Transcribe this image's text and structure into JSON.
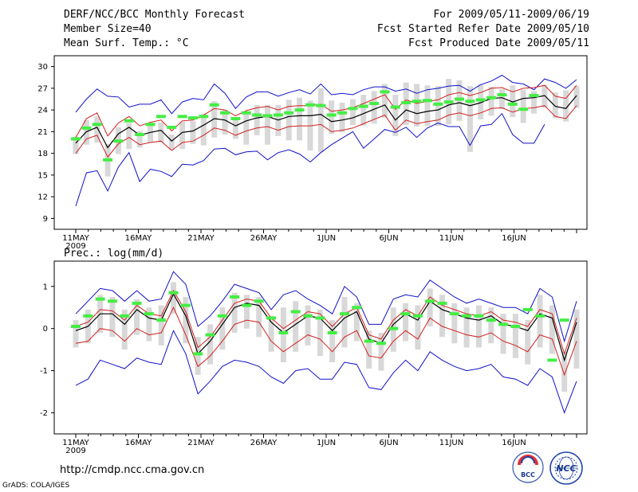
{
  "header": {
    "title": "DERF/NCC/BCC Monthly Forecast",
    "member": "Member Size=40",
    "variable": "Mean Surf. Temp.: °C",
    "period": "For 2009/05/11-2009/06/19",
    "started": "Fcst Started Refer Date 2009/05/10",
    "produced": "Fcst Produced Date 2009/05/11"
  },
  "footer": {
    "url": "http://cmdp.ncc.cma.gov.cn",
    "credit": "GrADS: COLA/IGES",
    "logo_bcc": "BCC",
    "logo_ncc": "NCC"
  },
  "colors": {
    "ensemble_mean": "#000000",
    "spread": "#d22020",
    "extreme": "#1010c8",
    "forecast_mark": "#44ee44",
    "box": "#d8d8d8"
  },
  "chart_data": [
    {
      "type": "line",
      "title": "Mean Surf. Temp.: °C",
      "xlabel": "",
      "ylabel": "°C",
      "x_ticks": [
        "11MAY",
        "16MAY",
        "21MAY",
        "26MAY",
        "1JUN",
        "6JUN",
        "11JUN",
        "16JUN"
      ],
      "x_year": "2009",
      "yticks": [
        9,
        12,
        15,
        18,
        21,
        24,
        27,
        30
      ],
      "ylim": [
        7.5,
        31.5
      ],
      "days": 40,
      "series": [
        {
          "name": "ensemble mean",
          "values": [
            19.4,
            21.0,
            21.6,
            18.8,
            20.7,
            21.6,
            20.5,
            20.9,
            21.2,
            19.7,
            20.9,
            21.1,
            21.9,
            22.8,
            22.6,
            21.8,
            22.5,
            22.9,
            23.1,
            22.6,
            23.1,
            23.2,
            23.2,
            23.4,
            22.4,
            22.6,
            22.9,
            23.5,
            24.1,
            24.7,
            22.6,
            24.0,
            23.5,
            23.8,
            24.0,
            24.7,
            25.0,
            24.6,
            25.0,
            25.6,
            25.7,
            25.1,
            25.6,
            25.7,
            26.0,
            24.5,
            24.2,
            26.0
          ]
        },
        {
          "name": "spread upper",
          "values": [
            20.2,
            22.8,
            23.6,
            20.4,
            22.2,
            23.1,
            21.8,
            22.3,
            22.6,
            21.1,
            22.5,
            22.6,
            23.3,
            24.2,
            24.0,
            23.2,
            23.9,
            24.3,
            24.5,
            24.0,
            24.5,
            24.6,
            24.6,
            24.8,
            23.8,
            24.0,
            24.3,
            24.9,
            25.5,
            26.1,
            24.1,
            25.4,
            24.9,
            25.2,
            25.4,
            26.1,
            26.4,
            26.0,
            26.4,
            27.0,
            27.1,
            26.5,
            27.0,
            27.1,
            27.4,
            25.9,
            25.6,
            27.4
          ]
        },
        {
          "name": "spread lower",
          "values": [
            18.0,
            20.0,
            20.5,
            17.5,
            19.3,
            20.2,
            19.2,
            19.5,
            19.7,
            18.4,
            19.5,
            19.7,
            20.5,
            21.5,
            21.2,
            20.5,
            21.1,
            21.5,
            21.7,
            21.2,
            21.7,
            21.8,
            21.8,
            22.0,
            21.0,
            21.2,
            21.5,
            22.1,
            22.7,
            23.3,
            21.2,
            22.6,
            22.1,
            22.4,
            22.6,
            23.3,
            23.6,
            23.2,
            23.6,
            24.2,
            24.3,
            23.7,
            24.2,
            24.3,
            24.6,
            23.1,
            22.8,
            24.6
          ]
        },
        {
          "name": "maximum",
          "values": [
            23.7,
            25.5,
            26.9,
            25.9,
            25.8,
            24.4,
            24.8,
            24.8,
            25.4,
            23.5,
            25.1,
            25.6,
            25.4,
            27.6,
            26.3,
            24.2,
            25.8,
            26.5,
            26.5,
            25.9,
            26.4,
            26.8,
            26.2,
            27.6,
            26.1,
            26.3,
            26.1,
            26.8,
            27.2,
            27.2,
            26.6,
            26.9,
            26.3,
            26.8,
            27.0,
            27.3,
            27.4,
            26.6,
            27.5,
            28.0,
            28.8,
            27.8,
            27.6,
            26.8,
            28.3,
            27.8,
            27.0,
            28.2
          ]
        },
        {
          "name": "minimum",
          "values": [
            10.7,
            15.3,
            15.6,
            12.8,
            16.1,
            18.1,
            14.1,
            15.8,
            15.5,
            14.8,
            16.5,
            16.4,
            17.0,
            18.6,
            18.7,
            17.8,
            18.2,
            18.3,
            17.1,
            18.1,
            18.5,
            17.9,
            16.8,
            18.1,
            19.2,
            20.1,
            21.0,
            18.7,
            20.0,
            21.3,
            20.9,
            21.6,
            20.2,
            21.5,
            22.2,
            21.7,
            21.7,
            19.1,
            21.8,
            22.0,
            23.5,
            20.6,
            19.4,
            19.4,
            22.0
          ]
        },
        {
          "name": "box top",
          "values": [
            20.3,
            22.6,
            23.1,
            19.3,
            21.6,
            22.2,
            21.1,
            21.9,
            22.3,
            20.6,
            22.4,
            22.5,
            23.5,
            25.2,
            24.0,
            22.8,
            23.6,
            24.7,
            24.7,
            24.7,
            25.4,
            25.7,
            25.3,
            27.0,
            25.3,
            25.0,
            25.5,
            26.1,
            26.6,
            27.6,
            26.1,
            27.8,
            27.6,
            27.4,
            27.3,
            28.3,
            28.1,
            27.3,
            27.5,
            27.2,
            26.9,
            27.4,
            26.8,
            26.6,
            27.5,
            26.4,
            26.7,
            27.3
          ]
        },
        {
          "name": "box bottom",
          "values": [
            17.9,
            19.2,
            19.5,
            14.8,
            17.9,
            18.6,
            18.8,
            19.5,
            19.5,
            18.5,
            18.6,
            19.3,
            19.1,
            20.2,
            20.6,
            20.0,
            19.2,
            20.5,
            19.2,
            20.4,
            19.8,
            19.8,
            18.4,
            18.2,
            20.7,
            20.9,
            21.9,
            21.8,
            22.1,
            22.9,
            20.4,
            21.9,
            21.7,
            21.8,
            21.8,
            22.0,
            22.5,
            18.2,
            22.7,
            23.2,
            24.1,
            23.0,
            22.2,
            23.5,
            24.3,
            22.9,
            22.4,
            24.3
          ]
        },
        {
          "name": "forecast",
          "values": [
            20.0,
            21.5,
            22.0,
            17.1,
            19.7,
            22.5,
            20.6,
            22.0,
            23.1,
            21.6,
            23.1,
            22.9,
            23.1,
            24.7,
            23.6,
            22.8,
            23.6,
            23.3,
            23.2,
            23.3,
            23.6,
            24.0,
            24.7,
            24.6,
            23.3,
            23.6,
            24.2,
            24.5,
            24.9,
            26.5,
            24.4,
            25.0,
            25.2,
            25.3,
            24.8,
            25.1,
            25.5,
            25.2,
            25.4,
            25.7,
            26.1,
            24.8,
            24.1,
            26.0
          ]
        }
      ]
    },
    {
      "type": "line",
      "title": "Prec.: log(mm/d)",
      "xlabel": "",
      "ylabel": "log(mm/d)",
      "x_ticks": [
        "11MAY",
        "16MAY",
        "21MAY",
        "26MAY",
        "1JUN",
        "6JUN",
        "11JUN",
        "16JUN"
      ],
      "x_year": "2009",
      "yticks": [
        -2,
        -1,
        0,
        1
      ],
      "ylim": [
        -2.5,
        1.6
      ],
      "days": 40,
      "series": [
        {
          "name": "ensemble mean",
          "values": [
            -0.05,
            0.05,
            0.35,
            0.35,
            0.1,
            0.45,
            0.25,
            0.2,
            0.82,
            0.3,
            -0.6,
            -0.3,
            0.1,
            0.5,
            0.6,
            0.55,
            0.15,
            -0.1,
            0.1,
            0.3,
            0.25,
            -0.05,
            0.25,
            0.4,
            -0.25,
            -0.35,
            0.1,
            0.35,
            0.2,
            0.65,
            0.45,
            0.35,
            0.25,
            0.2,
            0.3,
            0.1,
            0.05,
            -0.05,
            0.35,
            0.25,
            -0.75,
            0.15
          ]
        },
        {
          "name": "spread upper",
          "values": [
            0.05,
            0.15,
            0.45,
            0.42,
            0.2,
            0.55,
            0.35,
            0.3,
            0.9,
            0.4,
            -0.45,
            -0.2,
            0.2,
            0.6,
            0.7,
            0.65,
            0.25,
            0.0,
            0.2,
            0.4,
            0.35,
            0.05,
            0.35,
            0.5,
            -0.15,
            -0.25,
            0.2,
            0.45,
            0.3,
            0.75,
            0.55,
            0.45,
            0.35,
            0.3,
            0.4,
            0.2,
            0.15,
            0.05,
            0.45,
            0.35,
            -0.6,
            0.25
          ]
        },
        {
          "name": "spread lower",
          "values": [
            -0.35,
            -0.3,
            0.0,
            -0.05,
            -0.3,
            0.0,
            -0.15,
            -0.1,
            0.5,
            -0.15,
            -0.9,
            -0.65,
            -0.3,
            0.1,
            0.2,
            0.15,
            -0.3,
            -0.55,
            -0.35,
            -0.15,
            -0.25,
            -0.55,
            -0.2,
            -0.05,
            -0.65,
            -0.7,
            -0.3,
            -0.05,
            -0.25,
            0.25,
            0.05,
            -0.05,
            -0.15,
            -0.2,
            -0.1,
            -0.3,
            -0.4,
            -0.55,
            -0.15,
            -0.25,
            -1.1,
            -0.3
          ]
        },
        {
          "name": "maximum",
          "values": [
            0.35,
            0.65,
            0.95,
            0.9,
            0.65,
            0.9,
            0.65,
            0.7,
            1.35,
            1.05,
            0.05,
            0.3,
            0.65,
            1.05,
            0.95,
            0.85,
            0.45,
            0.8,
            0.9,
            0.7,
            0.55,
            0.35,
            1.0,
            0.75,
            0.1,
            0.1,
            0.7,
            0.8,
            0.75,
            1.15,
            0.95,
            0.75,
            0.6,
            0.7,
            0.6,
            0.5,
            0.5,
            0.35,
            0.95,
            0.75,
            -0.3,
            0.65
          ]
        },
        {
          "name": "minimum",
          "values": [
            -1.35,
            -1.2,
            -0.75,
            -0.85,
            -0.95,
            -0.7,
            -0.8,
            -0.85,
            -0.05,
            -0.6,
            -1.55,
            -1.25,
            -0.9,
            -0.75,
            -0.8,
            -0.9,
            -1.15,
            -1.3,
            -1.0,
            -0.95,
            -1.2,
            -1.2,
            -0.8,
            -0.85,
            -1.4,
            -1.45,
            -1.05,
            -0.75,
            -1.0,
            -0.55,
            -0.75,
            -0.9,
            -1.0,
            -0.95,
            -0.85,
            -1.15,
            -1.2,
            -1.35,
            -0.95,
            -1.15,
            -2.0,
            -1.25
          ]
        },
        {
          "name": "box top",
          "values": [
            0.2,
            0.45,
            0.8,
            0.75,
            0.45,
            0.7,
            0.5,
            0.55,
            1.1,
            0.75,
            -0.2,
            0.1,
            0.5,
            0.85,
            0.8,
            0.75,
            0.3,
            0.5,
            0.65,
            0.55,
            0.45,
            0.2,
            0.75,
            0.6,
            -0.05,
            -0.1,
            0.5,
            0.6,
            0.55,
            0.95,
            0.8,
            0.6,
            0.5,
            0.55,
            0.5,
            0.35,
            0.35,
            0.2,
            0.8,
            0.55,
            -0.55,
            0.45
          ]
        },
        {
          "name": "box bottom",
          "values": [
            -0.45,
            -0.35,
            -0.1,
            -0.2,
            -0.5,
            -0.15,
            -0.3,
            -0.4,
            0.35,
            -0.35,
            -1.1,
            -0.85,
            -0.5,
            -0.1,
            0.0,
            -0.2,
            -0.55,
            -0.8,
            -0.55,
            -0.4,
            -0.65,
            -0.8,
            -0.45,
            -0.3,
            -0.95,
            -1.0,
            -0.55,
            -0.3,
            -0.5,
            0.05,
            -0.2,
            -0.35,
            -0.45,
            -0.45,
            -0.35,
            -0.6,
            -0.7,
            -0.85,
            -0.45,
            -0.6,
            -1.5,
            -0.95
          ]
        },
        {
          "name": "forecast",
          "values": [
            0.05,
            0.3,
            0.7,
            0.65,
            0.3,
            0.6,
            0.35,
            0.2,
            0.85,
            0.55,
            -0.6,
            -0.15,
            0.3,
            0.75,
            0.55,
            0.65,
            0.25,
            -0.1,
            0.4,
            0.3,
            0.25,
            -0.1,
            0.35,
            0.5,
            -0.3,
            -0.35,
            0.0,
            0.35,
            0.3,
            0.65,
            0.6,
            0.35,
            0.3,
            0.3,
            0.2,
            0.1,
            0.05,
            0.45,
            0.3,
            -0.75,
            0.2
          ]
        }
      ]
    }
  ]
}
